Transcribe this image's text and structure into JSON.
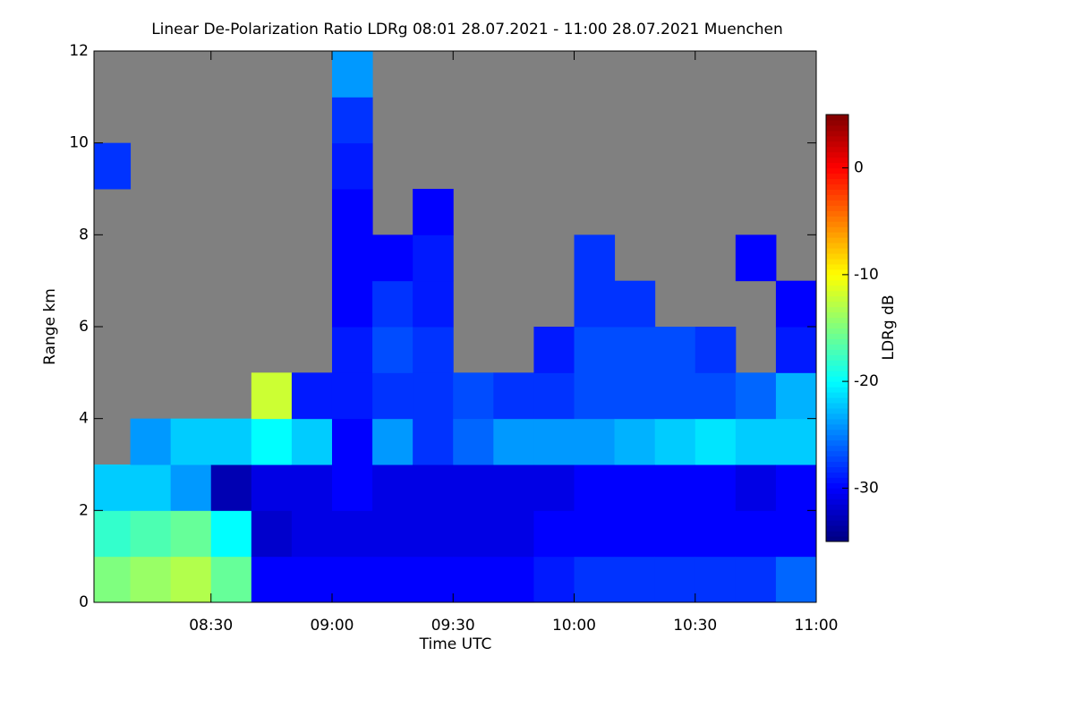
{
  "chart_data": {
    "type": "heatmap",
    "title": "Linear De-Polarization Ratio LDRg   08:01 28.07.2021 - 11:00 28.07.2021 Muenchen",
    "x_label": "Time UTC",
    "y_label": "Range km",
    "colorbar_label": "LDRg dB",
    "xlim": [
      "2021-07-28T08:01",
      "2021-07-28T11:00"
    ],
    "xticks": [
      {
        "value": "2021-07-28T08:30",
        "label": "08:30"
      },
      {
        "value": "2021-07-28T09:00",
        "label": "09:00"
      },
      {
        "value": "2021-07-28T09:30",
        "label": "09:30"
      },
      {
        "value": "2021-07-28T10:00",
        "label": "10:00"
      },
      {
        "value": "2021-07-28T10:30",
        "label": "10:30"
      },
      {
        "value": "2021-07-28T11:00",
        "label": "11:00"
      }
    ],
    "ylim": [
      0,
      12
    ],
    "yticks": [
      0,
      2,
      4,
      6,
      8,
      10,
      12
    ],
    "zlim": [
      -35,
      5
    ],
    "zticks": [
      0,
      -10,
      -20,
      -30
    ],
    "missing_color": "#808080",
    "colormap": [
      "#00007f",
      "#0000ff",
      "#007fff",
      "#00ffff",
      "#7fff7f",
      "#ffff00",
      "#ff7f00",
      "#ff0000",
      "#7f0000"
    ],
    "x_bins": [
      "2021-07-28T08:01",
      "2021-07-28T08:10",
      "2021-07-28T08:20",
      "2021-07-28T08:30",
      "2021-07-28T08:40",
      "2021-07-28T08:50",
      "2021-07-28T09:00",
      "2021-07-28T09:10",
      "2021-07-28T09:20",
      "2021-07-28T09:30",
      "2021-07-28T09:40",
      "2021-07-28T09:50",
      "2021-07-28T10:00",
      "2021-07-28T10:10",
      "2021-07-28T10:20",
      "2021-07-28T10:30",
      "2021-07-28T10:40",
      "2021-07-28T10:50",
      "2021-07-28T11:00"
    ],
    "y_bins": [
      0,
      1,
      2,
      3,
      4,
      5,
      6,
      7,
      8,
      9,
      10,
      11,
      12
    ],
    "values": [
      [
        -15,
        -18,
        -22,
        null,
        null,
        null,
        null,
        null,
        null,
        -28,
        null,
        null
      ],
      [
        -14,
        -17,
        -22,
        -24,
        null,
        null,
        null,
        null,
        null,
        null,
        null,
        null
      ],
      [
        -13,
        -16,
        -24,
        -22,
        null,
        null,
        null,
        null,
        null,
        null,
        null,
        null
      ],
      [
        -16,
        -20,
        -33,
        -22,
        null,
        null,
        null,
        null,
        null,
        null,
        null,
        null
      ],
      [
        -30,
        -32,
        -31,
        -20,
        -12,
        null,
        null,
        null,
        null,
        null,
        null,
        null
      ],
      [
        -30,
        -31,
        -31,
        -22,
        -29,
        null,
        null,
        null,
        null,
        null,
        null,
        null
      ],
      [
        -30,
        -31,
        -30,
        -30,
        -29,
        -29,
        -30,
        -30,
        -30,
        -29,
        -28,
        -24
      ],
      [
        -30,
        -31,
        -31,
        -24,
        -28,
        -27,
        -28,
        -30,
        null,
        null,
        null,
        null
      ],
      [
        -30,
        -31,
        -31,
        -28,
        -28,
        -28,
        -29,
        -29,
        -30,
        null,
        null,
        null
      ],
      [
        -30,
        -31,
        -31,
        -26,
        -27,
        null,
        null,
        null,
        null,
        null,
        null,
        null
      ],
      [
        -30,
        -31,
        -31,
        -24,
        -28,
        null,
        null,
        null,
        null,
        null,
        null,
        null
      ],
      [
        -29,
        -30,
        -31,
        -24,
        -28,
        -29,
        null,
        null,
        null,
        null,
        null,
        null
      ],
      [
        -28,
        -30,
        -30,
        -24,
        -27,
        -27,
        -28,
        -28,
        null,
        null,
        null,
        null
      ],
      [
        -28,
        -30,
        -30,
        -23,
        -27,
        -27,
        -28,
        null,
        null,
        null,
        null,
        null
      ],
      [
        -28,
        -30,
        -30,
        -22,
        -27,
        -27,
        null,
        null,
        null,
        null,
        null,
        null
      ],
      [
        -28,
        -30,
        -30,
        -21,
        -27,
        -28,
        null,
        null,
        null,
        null,
        null,
        null
      ],
      [
        -28,
        -30,
        -31,
        -22,
        -26,
        null,
        null,
        -30,
        null,
        null,
        null,
        null
      ],
      [
        -26,
        -30,
        -30,
        -22,
        -23,
        -29,
        -30,
        null,
        null,
        null,
        null,
        null
      ]
    ]
  }
}
